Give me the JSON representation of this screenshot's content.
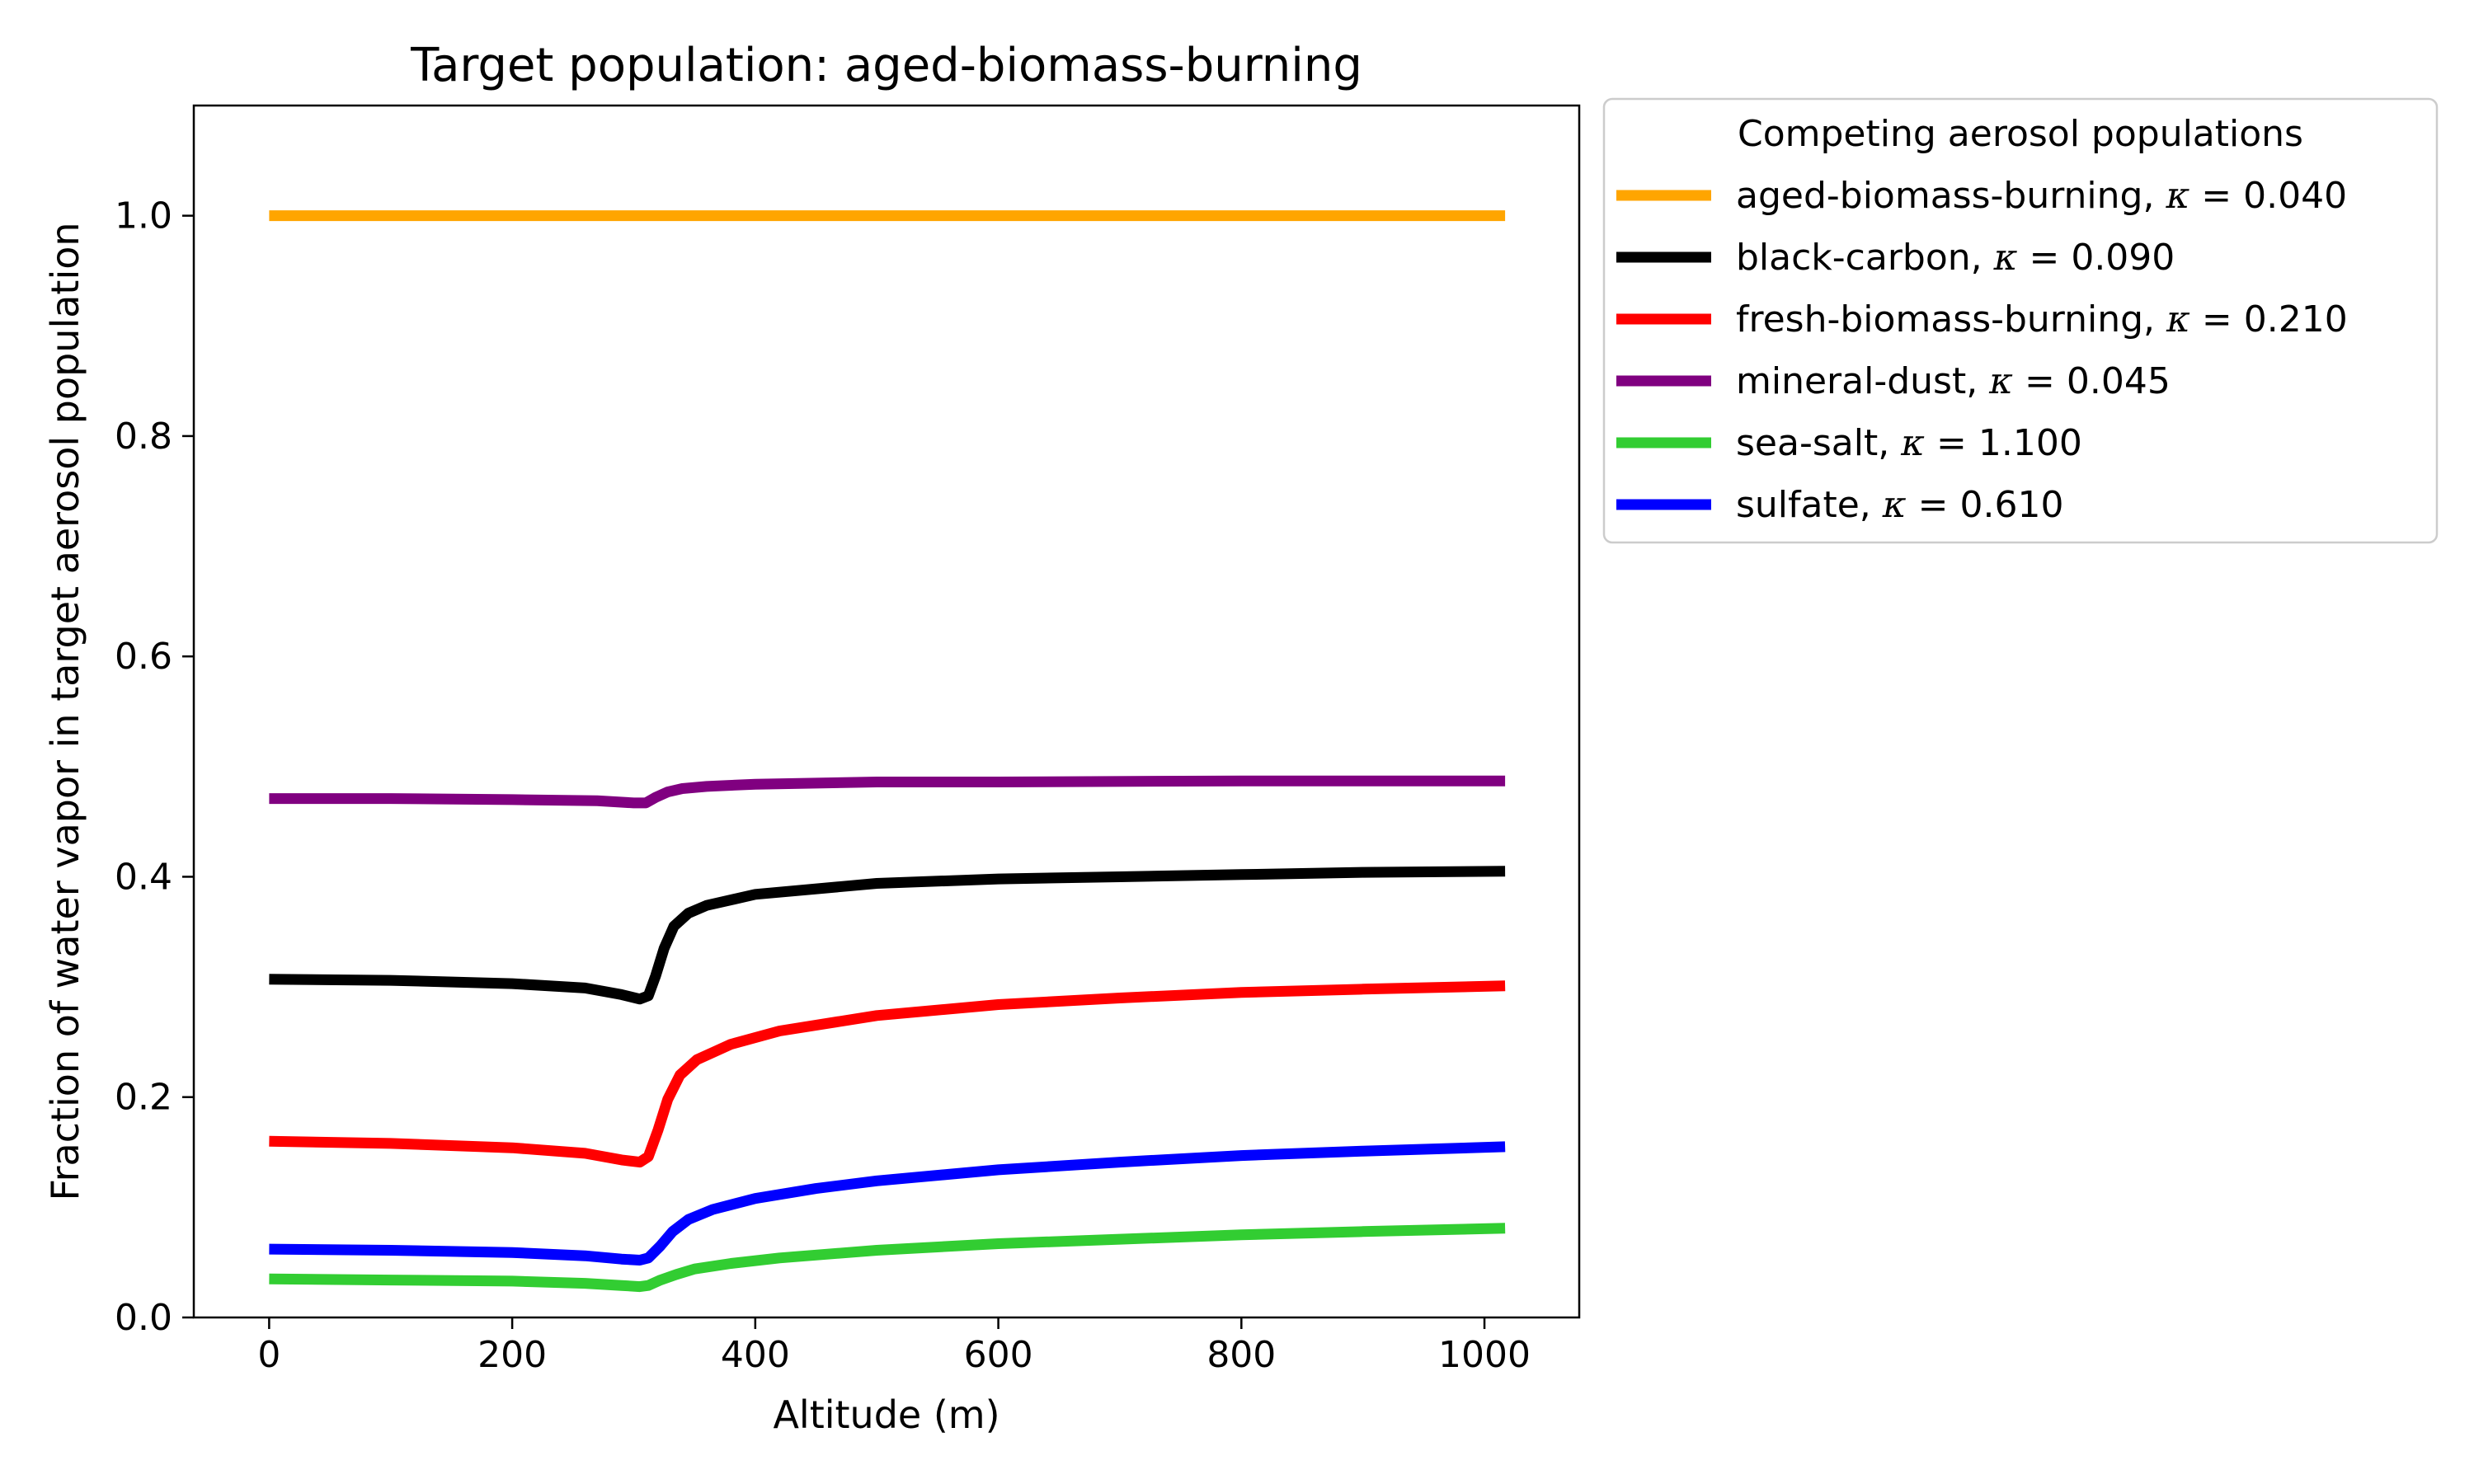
{
  "chart_data": {
    "type": "line",
    "title": "Target population: aged-biomass-burning",
    "xlabel": "Altitude (m)",
    "ylabel": "Fraction of water vapor in target aerosol population",
    "xlim": [
      -62,
      1078
    ],
    "ylim": [
      0.0,
      1.1
    ],
    "xticks": [
      0,
      200,
      400,
      600,
      800,
      1000
    ],
    "yticks": [
      0.0,
      0.2,
      0.4,
      0.6,
      0.8,
      1.0
    ],
    "xtick_labels": [
      "0",
      "200",
      "400",
      "600",
      "800",
      "1000"
    ],
    "ytick_labels": [
      "0.0",
      "0.2",
      "0.4",
      "0.6",
      "0.8",
      "1.0"
    ],
    "grid": false,
    "legend": {
      "title": "Competing aerosol populations",
      "placement": "outside-upper-right"
    },
    "series": [
      {
        "name": "aged-biomass-burning",
        "kappa": "0.040",
        "color": "#ffa500",
        "points": [
          [
            0,
            1.0
          ],
          [
            300,
            1.0
          ],
          [
            600,
            1.0
          ],
          [
            1017,
            1.0
          ]
        ]
      },
      {
        "name": "black-carbon",
        "kappa": "0.090",
        "color": "#000000",
        "points": [
          [
            0,
            0.307
          ],
          [
            100,
            0.306
          ],
          [
            200,
            0.303
          ],
          [
            260,
            0.299
          ],
          [
            290,
            0.293
          ],
          [
            305,
            0.289
          ],
          [
            312,
            0.292
          ],
          [
            318,
            0.31
          ],
          [
            325,
            0.335
          ],
          [
            333,
            0.355
          ],
          [
            345,
            0.367
          ],
          [
            360,
            0.374
          ],
          [
            400,
            0.384
          ],
          [
            500,
            0.394
          ],
          [
            600,
            0.398
          ],
          [
            700,
            0.4
          ],
          [
            800,
            0.402
          ],
          [
            900,
            0.404
          ],
          [
            1017,
            0.405
          ]
        ]
      },
      {
        "name": "fresh-biomass-burning",
        "kappa": "0.210",
        "color": "#ff0000",
        "points": [
          [
            0,
            0.16
          ],
          [
            100,
            0.158
          ],
          [
            200,
            0.154
          ],
          [
            260,
            0.149
          ],
          [
            290,
            0.143
          ],
          [
            305,
            0.141
          ],
          [
            312,
            0.146
          ],
          [
            320,
            0.17
          ],
          [
            328,
            0.198
          ],
          [
            338,
            0.22
          ],
          [
            352,
            0.234
          ],
          [
            380,
            0.248
          ],
          [
            420,
            0.26
          ],
          [
            500,
            0.274
          ],
          [
            600,
            0.284
          ],
          [
            700,
            0.29
          ],
          [
            800,
            0.295
          ],
          [
            900,
            0.298
          ],
          [
            1017,
            0.301
          ]
        ]
      },
      {
        "name": "mineral-dust",
        "kappa": "0.045",
        "color": "#800080",
        "points": [
          [
            0,
            0.471
          ],
          [
            100,
            0.471
          ],
          [
            200,
            0.47
          ],
          [
            270,
            0.469
          ],
          [
            300,
            0.467
          ],
          [
            310,
            0.467
          ],
          [
            318,
            0.472
          ],
          [
            328,
            0.477
          ],
          [
            340,
            0.48
          ],
          [
            360,
            0.482
          ],
          [
            400,
            0.484
          ],
          [
            500,
            0.486
          ],
          [
            600,
            0.486
          ],
          [
            800,
            0.487
          ],
          [
            1017,
            0.487
          ]
        ]
      },
      {
        "name": "sea-salt",
        "kappa": "1.100",
        "color": "#32cd32",
        "points": [
          [
            0,
            0.035
          ],
          [
            100,
            0.034
          ],
          [
            200,
            0.033
          ],
          [
            260,
            0.031
          ],
          [
            290,
            0.029
          ],
          [
            305,
            0.028
          ],
          [
            312,
            0.029
          ],
          [
            322,
            0.034
          ],
          [
            335,
            0.039
          ],
          [
            350,
            0.044
          ],
          [
            380,
            0.049
          ],
          [
            420,
            0.054
          ],
          [
            500,
            0.061
          ],
          [
            600,
            0.067
          ],
          [
            700,
            0.071
          ],
          [
            800,
            0.075
          ],
          [
            900,
            0.078
          ],
          [
            1017,
            0.081
          ]
        ]
      },
      {
        "name": "sulfate",
        "kappa": "0.610",
        "color": "#0000ff",
        "points": [
          [
            0,
            0.062
          ],
          [
            100,
            0.061
          ],
          [
            200,
            0.059
          ],
          [
            260,
            0.056
          ],
          [
            290,
            0.053
          ],
          [
            305,
            0.052
          ],
          [
            312,
            0.054
          ],
          [
            322,
            0.065
          ],
          [
            332,
            0.078
          ],
          [
            345,
            0.089
          ],
          [
            365,
            0.098
          ],
          [
            400,
            0.108
          ],
          [
            450,
            0.117
          ],
          [
            500,
            0.124
          ],
          [
            600,
            0.134
          ],
          [
            700,
            0.141
          ],
          [
            800,
            0.147
          ],
          [
            900,
            0.151
          ],
          [
            1017,
            0.155
          ]
        ]
      }
    ]
  }
}
